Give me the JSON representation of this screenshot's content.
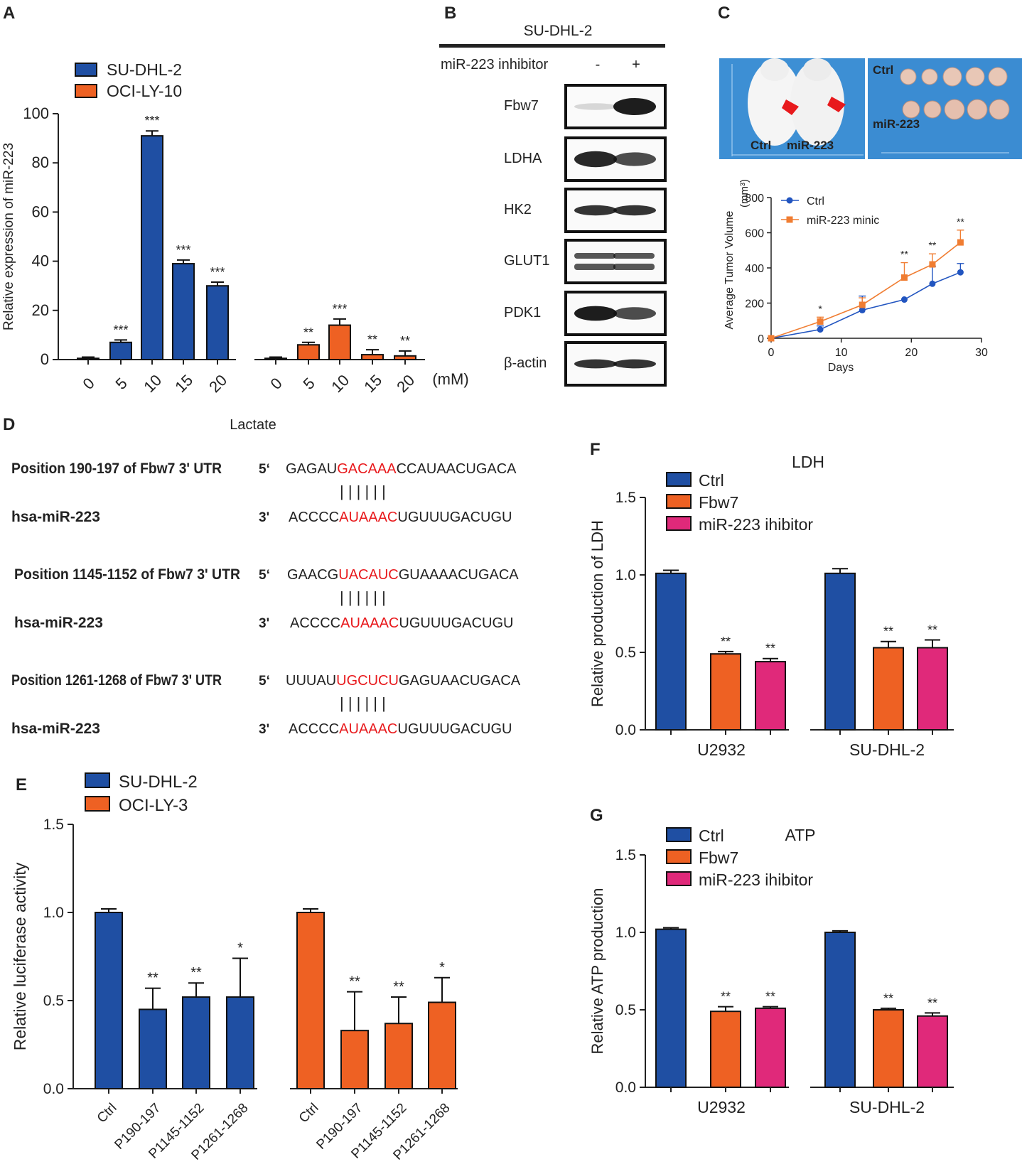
{
  "figure": {
    "colors": {
      "blue": "#1f4fa3",
      "orange": "#ee6123",
      "pink": "#e0297a",
      "red": "#e8191c",
      "photo_bg": "#3d8fd4",
      "line_blue": "#2255c0",
      "line_orange": "#f07d32"
    }
  },
  "panels": {
    "A": "A",
    "B": "B",
    "C": "C",
    "D": "D",
    "E": "E",
    "F": "F",
    "G": "G"
  },
  "chart_data": [
    {
      "panel": "A",
      "type": "bar",
      "ylabel": "Relative expression of miR-223",
      "xlabel": "Lactate",
      "unit": "(mM)",
      "ylim": [
        0,
        100
      ],
      "yticks": [
        0,
        20,
        40,
        60,
        80,
        100
      ],
      "categories": [
        "0",
        "5",
        "10",
        "15",
        "20"
      ],
      "series": [
        {
          "name": "SU-DHL-2",
          "color": "#1f4fa3",
          "values": [
            0.5,
            7,
            91,
            39,
            30
          ],
          "errors": [
            0.5,
            1,
            2,
            1.5,
            1.5
          ],
          "sig": [
            "",
            "***",
            "***",
            "***",
            "***"
          ]
        },
        {
          "name": "OCI-LY-10",
          "color": "#ee6123",
          "values": [
            0.5,
            6,
            14,
            2,
            1.5
          ],
          "errors": [
            0.5,
            1,
            2.5,
            2,
            2
          ],
          "sig": [
            "",
            "**",
            "***",
            "**",
            "**"
          ]
        }
      ]
    },
    {
      "panel": "C",
      "type": "line",
      "ylabel": "Average Tumor Volume",
      "yunit": "(mm³)",
      "xlabel": "Days",
      "xlim": [
        0,
        30
      ],
      "ylim": [
        0,
        800
      ],
      "xticks": [
        0,
        10,
        20,
        30
      ],
      "yticks": [
        0,
        200,
        400,
        600,
        800
      ],
      "x": [
        0,
        7,
        13,
        19,
        23,
        27
      ],
      "series": [
        {
          "name": "Ctrl",
          "color": "#2255c0",
          "marker": "circle",
          "values": [
            0,
            50,
            160,
            220,
            310,
            375
          ],
          "errors": [
            0,
            20,
            80,
            0,
            100,
            50
          ]
        },
        {
          "name": "miR-223 minic",
          "color": "#f07d32",
          "marker": "square",
          "values": [
            0,
            95,
            190,
            345,
            420,
            545
          ],
          "errors": [
            0,
            25,
            40,
            85,
            60,
            70
          ]
        }
      ],
      "sig": [
        {
          "x": 7,
          "label": "*"
        },
        {
          "x": 19,
          "label": "**"
        },
        {
          "x": 23,
          "label": "**"
        },
        {
          "x": 27,
          "label": "**"
        }
      ]
    },
    {
      "panel": "E",
      "type": "bar",
      "ylabel": "Relative luciferase activity",
      "ylim": [
        0,
        1.5
      ],
      "yticks": [
        "0.0",
        "0.5",
        "1.0",
        "1.5"
      ],
      "categories": [
        "Ctrl",
        "P190-197",
        "P1145-1152",
        "P1261-1268"
      ],
      "series": [
        {
          "name": "SU-DHL-2",
          "color": "#1f4fa3",
          "values": [
            1.0,
            0.45,
            0.52,
            0.52
          ],
          "errors": [
            0.02,
            0.12,
            0.08,
            0.22
          ],
          "sig": [
            "",
            "**",
            "**",
            "*"
          ]
        },
        {
          "name": "OCI-LY-3",
          "color": "#ee6123",
          "values": [
            1.0,
            0.33,
            0.37,
            0.49
          ],
          "errors": [
            0.02,
            0.22,
            0.15,
            0.14
          ],
          "sig": [
            "",
            "**",
            "**",
            "*"
          ]
        }
      ]
    },
    {
      "panel": "F",
      "type": "bar",
      "title": "LDH",
      "ylabel": "Relative production of LDH",
      "ylim": [
        0,
        1.5
      ],
      "yticks": [
        "0.0",
        "0.5",
        "1.0",
        "1.5"
      ],
      "categories": [
        "U2932",
        "SU-DHL-2"
      ],
      "series": [
        {
          "name": "Ctrl",
          "color": "#1f4fa3",
          "values": [
            1.01,
            1.01
          ],
          "errors": [
            0.02,
            0.03
          ],
          "sig": [
            "",
            ""
          ]
        },
        {
          "name": "Fbw7",
          "color": "#ee6123",
          "values": [
            0.49,
            0.53
          ],
          "errors": [
            0.015,
            0.04
          ],
          "sig": [
            "**",
            "**"
          ]
        },
        {
          "name": "miR-223 ihibitor",
          "color": "#e0297a",
          "values": [
            0.44,
            0.53
          ],
          "errors": [
            0.02,
            0.05
          ],
          "sig": [
            "**",
            "**"
          ]
        }
      ]
    },
    {
      "panel": "G",
      "type": "bar",
      "title": "ATP",
      "ylabel": "Relative ATP production",
      "ylim": [
        0,
        1.5
      ],
      "yticks": [
        "0.0",
        "0.5",
        "1.0",
        "1.5"
      ],
      "categories": [
        "U2932",
        "SU-DHL-2"
      ],
      "series": [
        {
          "name": "Ctrl",
          "color": "#1f4fa3",
          "values": [
            1.02,
            1.0
          ],
          "errors": [
            0.01,
            0.01
          ],
          "sig": [
            "",
            ""
          ]
        },
        {
          "name": "Fbw7",
          "color": "#ee6123",
          "values": [
            0.49,
            0.5
          ],
          "errors": [
            0.03,
            0.01
          ],
          "sig": [
            "**",
            "**"
          ]
        },
        {
          "name": "miR-223 ihibitor",
          "color": "#e0297a",
          "values": [
            0.51,
            0.46
          ],
          "errors": [
            0.01,
            0.02
          ],
          "sig": [
            "**",
            "**"
          ]
        }
      ]
    }
  ],
  "blot": {
    "header": "SU-DHL-2",
    "treatment": "miR-223 inhibitor",
    "lanes": [
      "-",
      "+"
    ],
    "rows": [
      "Fbw7",
      "LDHA",
      "HK2",
      "GLUT1",
      "PDK1",
      "β-actin"
    ]
  },
  "photo": {
    "left_labels": [
      "Ctrl",
      "miR-223"
    ],
    "right_labels": [
      "Ctrl",
      "miR-223"
    ]
  },
  "alignments": [
    {
      "position": "Position 190-197 of Fbw7 3' UTR",
      "p5": "5‘",
      "pre": "GAGAU",
      "seed": "GACAAA",
      "post": "CCAUAACUGACA",
      "bars": "| | | | | |",
      "mirna": "hsa-miR-223",
      "p3": "3'",
      "m_pre": "ACCCC",
      "m_seed": "AUAAAC",
      "m_post": "UGUUUGACUGU"
    },
    {
      "position": "Position 1145-1152 of Fbw7 3' UTR",
      "p5": "5‘",
      "pre": "GAACG",
      "seed": "UACAUC",
      "post": "GUAAAACUGACA",
      "bars": "| | | | | |",
      "mirna": "hsa-miR-223",
      "p3": "3'",
      "m_pre": "ACCCC",
      "m_seed": "AUAAAC",
      "m_post": "UGUUUGACUGU"
    },
    {
      "position": "Position 1261-1268 of Fbw7 3' UTR",
      "p5": "5‘",
      "pre": "UUUAU",
      "seed": "UGCUCU",
      "post": "GAGUAACUGACA",
      "bars": "| | | | | |",
      "mirna": "hsa-miR-223",
      "p3": "3'",
      "m_pre": "ACCCC",
      "m_seed": "AUAAAC",
      "m_post": "UGUUUGACUGU"
    }
  ]
}
